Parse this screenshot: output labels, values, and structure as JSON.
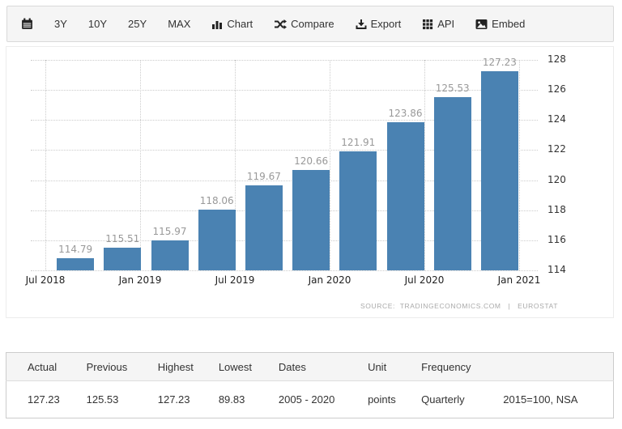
{
  "toolbar": {
    "items": [
      {
        "label": "3Y"
      },
      {
        "label": "10Y"
      },
      {
        "label": "25Y"
      },
      {
        "label": "MAX"
      },
      {
        "label": "Chart",
        "icon": "bar-chart-icon"
      },
      {
        "label": "Compare",
        "icon": "shuffle-icon"
      },
      {
        "label": "Export",
        "icon": "download-icon"
      },
      {
        "label": "API",
        "icon": "grid-icon"
      },
      {
        "label": "Embed",
        "icon": "image-icon"
      }
    ]
  },
  "chart_data": {
    "type": "bar",
    "categories": [
      "Q3 2018",
      "Q4 2018",
      "Q1 2019",
      "Q2 2019",
      "Q3 2019",
      "Q4 2019",
      "Q1 2020",
      "Q2 2020",
      "Q3 2020",
      "Q4 2020"
    ],
    "values": [
      114.79,
      115.51,
      115.97,
      118.06,
      119.67,
      120.66,
      121.91,
      123.86,
      125.53,
      127.23
    ],
    "x_tick_labels": [
      "Jul 2018",
      "Jan 2019",
      "Jul 2019",
      "Jan 2020",
      "Jul 2020",
      "Jan 2021"
    ],
    "y_ticks": [
      114,
      116,
      118,
      120,
      122,
      124,
      126,
      128
    ],
    "ylim": [
      114,
      128
    ],
    "bar_color": "#4a82b2",
    "grid": "dotted, both axes",
    "y_axis_position": "right",
    "legend": "none",
    "title": "",
    "source_note": "SOURCE:  TRADINGECONOMICS.COM   |   EUROSTAT"
  },
  "summary_table": {
    "columns": [
      "Actual",
      "Previous",
      "Highest",
      "Lowest",
      "Dates",
      "Unit",
      "Frequency",
      ""
    ],
    "rows": [
      [
        "127.23",
        "125.53",
        "127.23",
        "89.83",
        "2005 - 2020",
        "points",
        "Quarterly",
        "2015=100, NSA"
      ]
    ]
  },
  "colors": {
    "bar": "#4a82b2",
    "toolbar_bg": "#f5f5f5",
    "table_header_bg": "#f5f5f5",
    "gridline": "#cccccc",
    "value_label": "#999999",
    "axis_label": "#333333"
  }
}
